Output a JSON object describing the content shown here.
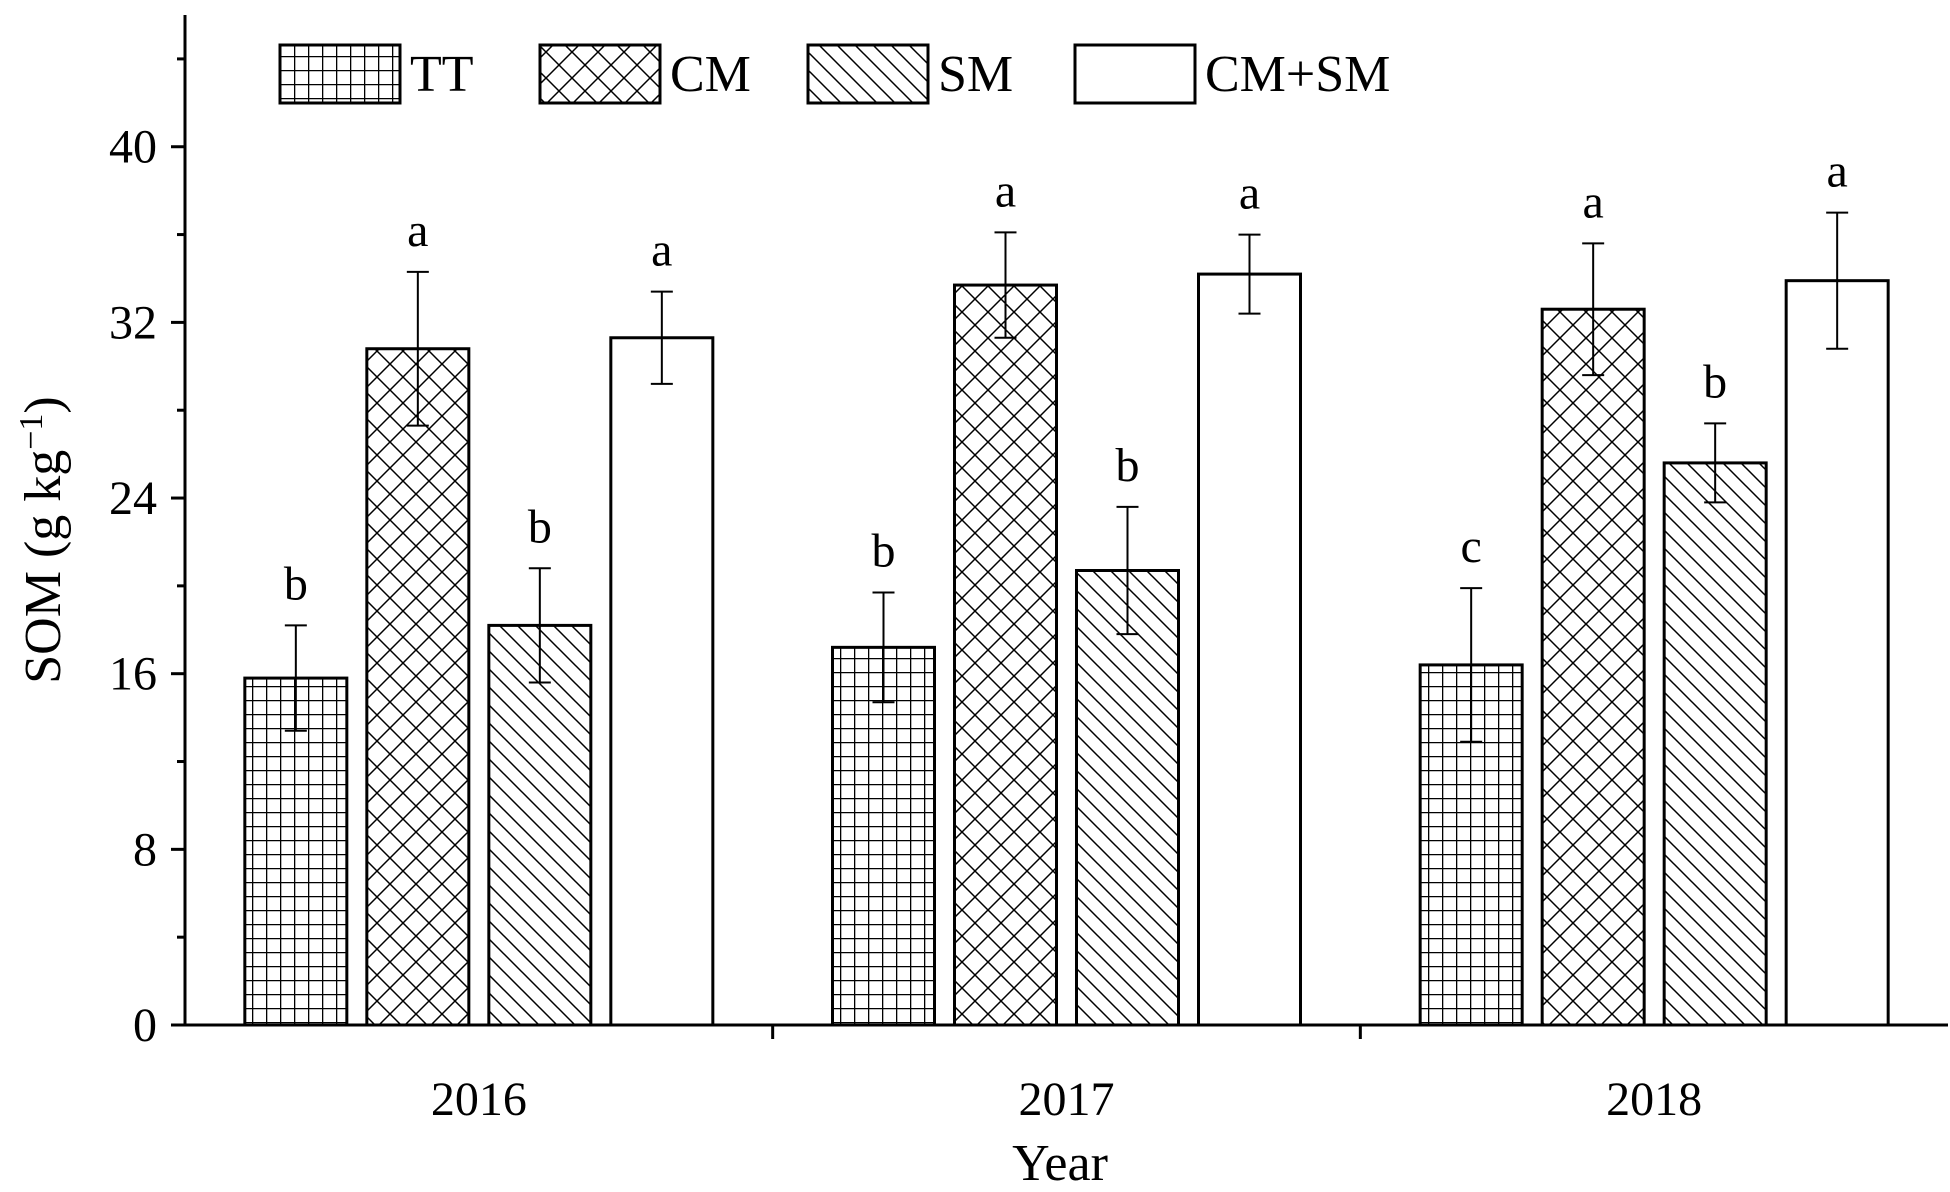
{
  "chart_data": {
    "type": "bar",
    "title": "",
    "xlabel": "Year",
    "ylabel": "SOM (g kg",
    "ylabel_sup": "−1",
    "ylabel_close": ")",
    "categories": [
      "2016",
      "2017",
      "2018"
    ],
    "ylim": [
      0,
      46
    ],
    "yticks": [
      0,
      8,
      16,
      24,
      32,
      40
    ],
    "legend_position": "top-left",
    "grid": false,
    "series": [
      {
        "name": "TT",
        "pattern": "grid",
        "values": [
          15.8,
          17.2,
          16.4
        ],
        "errors": [
          2.4,
          2.5,
          3.5
        ],
        "labels": [
          "b",
          "b",
          "c"
        ]
      },
      {
        "name": "CM",
        "pattern": "crosshatch",
        "values": [
          30.8,
          33.7,
          32.6
        ],
        "errors": [
          3.5,
          2.4,
          3.0
        ],
        "labels": [
          "a",
          "a",
          "a"
        ]
      },
      {
        "name": "SM",
        "pattern": "diagonal",
        "values": [
          18.2,
          20.7,
          25.6
        ],
        "errors": [
          2.6,
          2.9,
          1.8
        ],
        "labels": [
          "b",
          "b",
          "b"
        ]
      },
      {
        "name": "CM+SM",
        "pattern": "none",
        "values": [
          31.3,
          34.2,
          33.9
        ],
        "errors": [
          2.1,
          1.8,
          3.1
        ],
        "labels": [
          "a",
          "a",
          "a"
        ]
      }
    ]
  },
  "colors": {
    "stroke": "#000000",
    "fill": "#ffffff"
  }
}
